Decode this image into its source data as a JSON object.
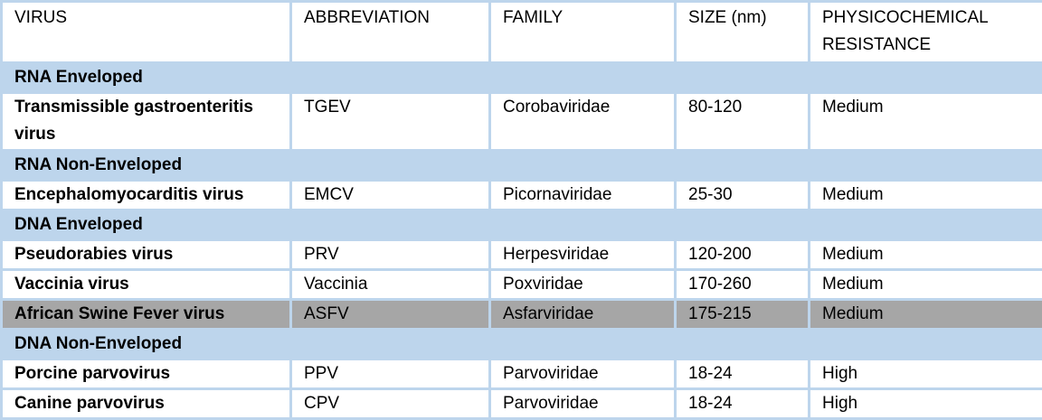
{
  "headers": [
    "VIRUS",
    "ABBREVIATION",
    "FAMILY",
    "SIZE (nm)",
    "PHYSICOCHEMICAL RESISTANCE"
  ],
  "colors": {
    "group_band": "#bdd5ec",
    "highlight_row": "#a6a6a6",
    "grid": "#bdd5ec"
  },
  "groups": [
    {
      "label": "RNA Enveloped",
      "rows": [
        {
          "virus": "Transmissible gastroenteritis virus",
          "abbr": "TGEV",
          "family": "Corobaviridae",
          "size": "80-120",
          "resistance": "Medium"
        }
      ]
    },
    {
      "label": "RNA Non-Enveloped",
      "rows": [
        {
          "virus": "Encephalomyocarditis virus",
          "abbr": "EMCV",
          "family": "Picornaviridae",
          "size": "25-30",
          "resistance": "Medium"
        }
      ]
    },
    {
      "label": "DNA Enveloped",
      "rows": [
        {
          "virus": "Pseudorabies virus",
          "abbr": "PRV",
          "family": "Herpesviridae",
          "size": "120-200",
          "resistance": "Medium"
        },
        {
          "virus": "Vaccinia virus",
          "abbr": "Vaccinia",
          "family": "Poxviridae",
          "size": "170-260",
          "resistance": "Medium"
        },
        {
          "virus": "African Swine Fever virus",
          "abbr": "ASFV",
          "family": "Asfarviridae",
          "size": "175-215",
          "resistance": "Medium",
          "highlighted": true
        }
      ]
    },
    {
      "label": "DNA Non-Enveloped",
      "rows": [
        {
          "virus": "Porcine parvovirus",
          "abbr": "PPV",
          "family": "Parvoviridae",
          "size": "18-24",
          "resistance": "High"
        },
        {
          "virus": "Canine parvovirus",
          "abbr": "CPV",
          "family": "Parvoviridae",
          "size": "18-24",
          "resistance": "High"
        }
      ]
    }
  ]
}
